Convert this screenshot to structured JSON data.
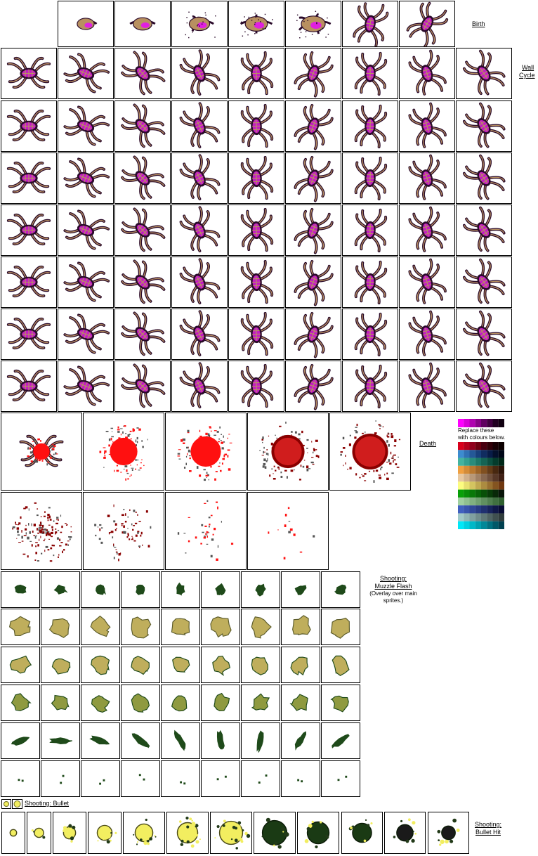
{
  "labels": {
    "birth": "Birth",
    "wall_line1": "Wall",
    "wall_line2": "Cycle",
    "death": "Death",
    "muzzle_line1": "Shooting:",
    "muzzle_line2": "Muzzle Flash",
    "muzzle_note1": "(Overlay over main",
    "muzzle_note2": "sprites.)",
    "bullet": "Shooting: Bullet",
    "hit_line1": "Shooting:",
    "hit_line2": "Bullet Hit",
    "replace_line1": "Replace these",
    "replace_line2": "with colours below."
  },
  "colors": {
    "magenta": "#e020e0",
    "dark_purple": "#2a0a2a",
    "tan": "#b89060",
    "blood_red": "#ff1010",
    "dark_red": "#8a0000",
    "olive": "#bfae5c",
    "dark_green": "#1f4a1a",
    "bullet_yellow": "#f2ee60"
  },
  "palette_source": [
    "#ff00ff",
    "#d800d8",
    "#b000b0",
    "#880088",
    "#600060",
    "#400040",
    "#200020",
    "#100010"
  ],
  "palette_swatches": [
    [
      "#d8001c",
      "#b4001c",
      "#90001c",
      "#6c0010",
      "#480010",
      "#300008",
      "#180004",
      "#0c0000"
    ],
    [
      "#3c8cd0",
      "#3070b4",
      "#245898",
      "#18407c",
      "#102c60",
      "#081c48",
      "#04102c",
      "#000818"
    ],
    [
      "#44b4a0",
      "#34a090",
      "#288c7c",
      "#1c7868",
      "#146454",
      "#0c5040",
      "#043c2c",
      "#002818"
    ],
    [
      "#f0a040",
      "#d48c38",
      "#b87830",
      "#9c6428",
      "#805020",
      "#643c18",
      "#482810",
      "#2c1408"
    ],
    [
      "#e8c8a0",
      "#d0b08c",
      "#b89878",
      "#a08064",
      "#886850",
      "#70503c",
      "#583828",
      "#402014"
    ],
    [
      "#fcfc80",
      "#e8e070",
      "#d4c460",
      "#c0a850",
      "#ac8c40",
      "#987030",
      "#845420",
      "#703810"
    ],
    [
      "#08a008",
      "#088c08",
      "#087808",
      "#086408",
      "#085008",
      "#083c08",
      "#082808",
      "#081408"
    ],
    [
      "#a0d0a0",
      "#90c090",
      "#80b080",
      "#70a070",
      "#609060",
      "#508050",
      "#407040",
      "#306030"
    ],
    [
      "#4060c0",
      "#3854ac",
      "#304898",
      "#283c84",
      "#203070",
      "#18245c",
      "#101848",
      "#080c34"
    ],
    [
      "#a0c8c8",
      "#90b4b4",
      "#80a0a0",
      "#708c8c",
      "#607878",
      "#506464",
      "#405050",
      "#303c3c"
    ],
    [
      "#00e8f8",
      "#00d0e0",
      "#00b8c8",
      "#00a0b0",
      "#008898",
      "#007080",
      "#005868",
      "#004050"
    ]
  ]
}
